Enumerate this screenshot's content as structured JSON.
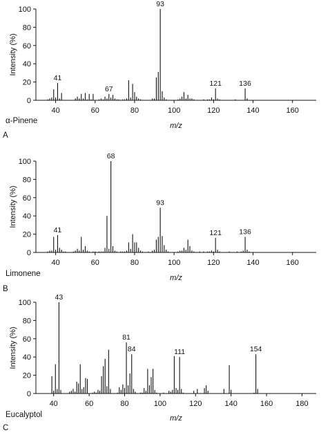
{
  "chart_data": [
    {
      "type": "bar",
      "compound": "α-Pinene",
      "panel": "A",
      "xlabel": "m/z",
      "ylabel": "Intensity (%)",
      "xlim": [
        30,
        172
      ],
      "ylim": [
        0,
        100
      ],
      "xticks": [
        40,
        60,
        80,
        100,
        120,
        140,
        160
      ],
      "yticks": [
        0,
        20,
        40,
        60,
        80,
        100
      ],
      "peaks": [
        {
          "x": 36,
          "y": 1
        },
        {
          "x": 37,
          "y": 2
        },
        {
          "x": 38,
          "y": 3
        },
        {
          "x": 39,
          "y": 12
        },
        {
          "x": 40,
          "y": 3
        },
        {
          "x": 41,
          "y": 19,
          "label": "41"
        },
        {
          "x": 42,
          "y": 2
        },
        {
          "x": 43,
          "y": 8
        },
        {
          "x": 50,
          "y": 2
        },
        {
          "x": 51,
          "y": 4
        },
        {
          "x": 52,
          "y": 2
        },
        {
          "x": 53,
          "y": 7
        },
        {
          "x": 54,
          "y": 2
        },
        {
          "x": 55,
          "y": 8
        },
        {
          "x": 56,
          "y": 1
        },
        {
          "x": 57,
          "y": 7
        },
        {
          "x": 58,
          "y": 1
        },
        {
          "x": 59,
          "y": 7
        },
        {
          "x": 62,
          "y": 1
        },
        {
          "x": 63,
          "y": 2
        },
        {
          "x": 64,
          "y": 1
        },
        {
          "x": 65,
          "y": 4
        },
        {
          "x": 66,
          "y": 2
        },
        {
          "x": 67,
          "y": 7,
          "label": "67"
        },
        {
          "x": 68,
          "y": 3
        },
        {
          "x": 69,
          "y": 6
        },
        {
          "x": 70,
          "y": 2
        },
        {
          "x": 71,
          "y": 1
        },
        {
          "x": 72,
          "y": 1
        },
        {
          "x": 74,
          "y": 1
        },
        {
          "x": 75,
          "y": 1
        },
        {
          "x": 76,
          "y": 2
        },
        {
          "x": 77,
          "y": 22
        },
        {
          "x": 78,
          "y": 3
        },
        {
          "x": 79,
          "y": 18
        },
        {
          "x": 80,
          "y": 9
        },
        {
          "x": 81,
          "y": 4
        },
        {
          "x": 82,
          "y": 2
        },
        {
          "x": 83,
          "y": 1
        },
        {
          "x": 89,
          "y": 2
        },
        {
          "x": 90,
          "y": 2
        },
        {
          "x": 91,
          "y": 25
        },
        {
          "x": 92,
          "y": 31
        },
        {
          "x": 93,
          "y": 100,
          "label": "93"
        },
        {
          "x": 94,
          "y": 10
        },
        {
          "x": 95,
          "y": 3
        },
        {
          "x": 96,
          "y": 1
        },
        {
          "x": 102,
          "y": 1
        },
        {
          "x": 103,
          "y": 2
        },
        {
          "x": 104,
          "y": 4
        },
        {
          "x": 105,
          "y": 9
        },
        {
          "x": 106,
          "y": 2
        },
        {
          "x": 107,
          "y": 6
        },
        {
          "x": 108,
          "y": 2
        },
        {
          "x": 109,
          "y": 2
        },
        {
          "x": 110,
          "y": 1
        },
        {
          "x": 115,
          "y": 1
        },
        {
          "x": 117,
          "y": 1
        },
        {
          "x": 118,
          "y": 1
        },
        {
          "x": 119,
          "y": 3
        },
        {
          "x": 120,
          "y": 1
        },
        {
          "x": 121,
          "y": 13,
          "label": "121"
        },
        {
          "x": 122,
          "y": 2
        },
        {
          "x": 123,
          "y": 1
        },
        {
          "x": 131,
          "y": 1
        },
        {
          "x": 136,
          "y": 13,
          "label": "136"
        },
        {
          "x": 137,
          "y": 2
        }
      ]
    },
    {
      "type": "bar",
      "compound": "Limonene",
      "panel": "B",
      "xlabel": "m/z",
      "ylabel": "Intensity (%)",
      "xlim": [
        30,
        172
      ],
      "ylim": [
        0,
        100
      ],
      "xticks": [
        40,
        60,
        80,
        100,
        120,
        140,
        160
      ],
      "yticks": [
        0,
        20,
        40,
        60,
        80,
        100
      ],
      "peaks": [
        {
          "x": 36,
          "y": 1
        },
        {
          "x": 37,
          "y": 2
        },
        {
          "x": 38,
          "y": 2
        },
        {
          "x": 39,
          "y": 17
        },
        {
          "x": 40,
          "y": 3
        },
        {
          "x": 41,
          "y": 19,
          "label": "41"
        },
        {
          "x": 42,
          "y": 5
        },
        {
          "x": 43,
          "y": 3
        },
        {
          "x": 44,
          "y": 1
        },
        {
          "x": 45,
          "y": 1
        },
        {
          "x": 49,
          "y": 1
        },
        {
          "x": 50,
          "y": 2
        },
        {
          "x": 51,
          "y": 4
        },
        {
          "x": 52,
          "y": 2
        },
        {
          "x": 53,
          "y": 17
        },
        {
          "x": 54,
          "y": 3
        },
        {
          "x": 55,
          "y": 7
        },
        {
          "x": 56,
          "y": 2
        },
        {
          "x": 57,
          "y": 1
        },
        {
          "x": 59,
          "y": 1
        },
        {
          "x": 60,
          "y": 1
        },
        {
          "x": 62,
          "y": 1
        },
        {
          "x": 63,
          "y": 1
        },
        {
          "x": 64,
          "y": 1
        },
        {
          "x": 65,
          "y": 5
        },
        {
          "x": 66,
          "y": 40
        },
        {
          "x": 67,
          "y": 4
        },
        {
          "x": 68,
          "y": 100,
          "label": "68"
        },
        {
          "x": 69,
          "y": 7
        },
        {
          "x": 70,
          "y": 2
        },
        {
          "x": 71,
          "y": 1
        },
        {
          "x": 73,
          "y": 1
        },
        {
          "x": 74,
          "y": 1
        },
        {
          "x": 75,
          "y": 1
        },
        {
          "x": 76,
          "y": 2
        },
        {
          "x": 77,
          "y": 11
        },
        {
          "x": 78,
          "y": 4
        },
        {
          "x": 79,
          "y": 20
        },
        {
          "x": 80,
          "y": 11
        },
        {
          "x": 81,
          "y": 11
        },
        {
          "x": 82,
          "y": 5
        },
        {
          "x": 83,
          "y": 2
        },
        {
          "x": 84,
          "y": 1
        },
        {
          "x": 87,
          "y": 1
        },
        {
          "x": 89,
          "y": 2
        },
        {
          "x": 90,
          "y": 3
        },
        {
          "x": 91,
          "y": 14
        },
        {
          "x": 92,
          "y": 17
        },
        {
          "x": 93,
          "y": 49,
          "label": "93"
        },
        {
          "x": 94,
          "y": 18
        },
        {
          "x": 95,
          "y": 8
        },
        {
          "x": 96,
          "y": 3
        },
        {
          "x": 97,
          "y": 1
        },
        {
          "x": 102,
          "y": 1
        },
        {
          "x": 103,
          "y": 2
        },
        {
          "x": 104,
          "y": 2
        },
        {
          "x": 105,
          "y": 5
        },
        {
          "x": 106,
          "y": 3
        },
        {
          "x": 107,
          "y": 14
        },
        {
          "x": 108,
          "y": 7
        },
        {
          "x": 109,
          "y": 2
        },
        {
          "x": 110,
          "y": 1
        },
        {
          "x": 113,
          "y": 1
        },
        {
          "x": 115,
          "y": 1
        },
        {
          "x": 117,
          "y": 1
        },
        {
          "x": 118,
          "y": 1
        },
        {
          "x": 119,
          "y": 2
        },
        {
          "x": 120,
          "y": 1
        },
        {
          "x": 121,
          "y": 16,
          "label": "121"
        },
        {
          "x": 122,
          "y": 3
        },
        {
          "x": 123,
          "y": 1
        },
        {
          "x": 128,
          "y": 1
        },
        {
          "x": 132,
          "y": 1
        },
        {
          "x": 134,
          "y": 1
        },
        {
          "x": 135,
          "y": 2
        },
        {
          "x": 136,
          "y": 17,
          "label": "136"
        },
        {
          "x": 137,
          "y": 3
        },
        {
          "x": 138,
          "y": 1
        }
      ]
    },
    {
      "type": "bar",
      "compound": "Eucalyptol",
      "panel": "C",
      "xlabel": "m/z",
      "ylabel": "Intensity (%)",
      "xlim": [
        30,
        188
      ],
      "ylim": [
        0,
        100
      ],
      "xticks": [
        40,
        60,
        80,
        100,
        120,
        140,
        160,
        180
      ],
      "yticks": [
        0,
        20,
        40,
        60,
        80,
        100
      ],
      "peaks": [
        {
          "x": 39,
          "y": 19
        },
        {
          "x": 40,
          "y": 3
        },
        {
          "x": 41,
          "y": 32
        },
        {
          "x": 42,
          "y": 5
        },
        {
          "x": 43,
          "y": 100,
          "label": "43"
        },
        {
          "x": 44,
          "y": 4
        },
        {
          "x": 49,
          "y": 2
        },
        {
          "x": 50,
          "y": 3
        },
        {
          "x": 51,
          "y": 5
        },
        {
          "x": 52,
          "y": 2
        },
        {
          "x": 53,
          "y": 13
        },
        {
          "x": 54,
          "y": 11
        },
        {
          "x": 55,
          "y": 32
        },
        {
          "x": 56,
          "y": 5
        },
        {
          "x": 57,
          "y": 7
        },
        {
          "x": 58,
          "y": 17
        },
        {
          "x": 59,
          "y": 16
        },
        {
          "x": 62,
          "y": 1
        },
        {
          "x": 63,
          "y": 2
        },
        {
          "x": 64,
          "y": 1
        },
        {
          "x": 65,
          "y": 4
        },
        {
          "x": 66,
          "y": 3
        },
        {
          "x": 67,
          "y": 19
        },
        {
          "x": 68,
          "y": 30
        },
        {
          "x": 69,
          "y": 38
        },
        {
          "x": 70,
          "y": 8
        },
        {
          "x": 71,
          "y": 48
        },
        {
          "x": 72,
          "y": 5
        },
        {
          "x": 76,
          "y": 1
        },
        {
          "x": 77,
          "y": 7
        },
        {
          "x": 78,
          "y": 4
        },
        {
          "x": 79,
          "y": 10
        },
        {
          "x": 80,
          "y": 6
        },
        {
          "x": 81,
          "y": 56,
          "label": "81"
        },
        {
          "x": 82,
          "y": 9
        },
        {
          "x": 83,
          "y": 22
        },
        {
          "x": 84,
          "y": 43,
          "label": "84"
        },
        {
          "x": 85,
          "y": 5
        },
        {
          "x": 86,
          "y": 2
        },
        {
          "x": 89,
          "y": 1
        },
        {
          "x": 90,
          "y": 1
        },
        {
          "x": 91,
          "y": 6
        },
        {
          "x": 92,
          "y": 3
        },
        {
          "x": 93,
          "y": 27
        },
        {
          "x": 94,
          "y": 9
        },
        {
          "x": 95,
          "y": 18
        },
        {
          "x": 96,
          "y": 27
        },
        {
          "x": 97,
          "y": 4
        },
        {
          "x": 98,
          "y": 1
        },
        {
          "x": 102,
          "y": 1
        },
        {
          "x": 105,
          "y": 3
        },
        {
          "x": 106,
          "y": 2
        },
        {
          "x": 107,
          "y": 4
        },
        {
          "x": 108,
          "y": 41
        },
        {
          "x": 109,
          "y": 6
        },
        {
          "x": 110,
          "y": 4
        },
        {
          "x": 111,
          "y": 40,
          "label": "111"
        },
        {
          "x": 112,
          "y": 5
        },
        {
          "x": 113,
          "y": 1
        },
        {
          "x": 119,
          "y": 3
        },
        {
          "x": 121,
          "y": 5
        },
        {
          "x": 125,
          "y": 6
        },
        {
          "x": 126,
          "y": 9
        },
        {
          "x": 127,
          "y": 3
        },
        {
          "x": 136,
          "y": 5
        },
        {
          "x": 139,
          "y": 31
        },
        {
          "x": 140,
          "y": 4
        },
        {
          "x": 153,
          "y": 1
        },
        {
          "x": 154,
          "y": 43,
          "label": "154"
        },
        {
          "x": 155,
          "y": 5
        }
      ]
    }
  ]
}
